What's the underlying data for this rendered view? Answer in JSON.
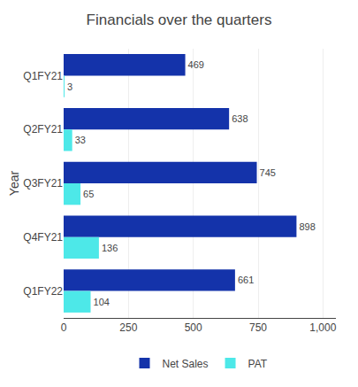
{
  "chart_data": {
    "type": "bar",
    "orientation": "horizontal",
    "title": "Financials over the quarters",
    "ylabel": "Year",
    "categories": [
      "Q1FY21",
      "Q2FY21",
      "Q3FY21",
      "Q4FY21",
      "Q1FY22"
    ],
    "series": [
      {
        "name": "Net Sales",
        "color": "#1433aa",
        "values": [
          469,
          638,
          745,
          898,
          661
        ]
      },
      {
        "name": "PAT",
        "color": "#4de8e8",
        "values": [
          3,
          33,
          65,
          136,
          104
        ]
      }
    ],
    "xlim": [
      0,
      1050
    ],
    "xticks": [
      0,
      250,
      500,
      750,
      {
        "value": 1000,
        "label": "1,000"
      }
    ],
    "grid": true,
    "legend": "bottom",
    "data_labels": true
  }
}
